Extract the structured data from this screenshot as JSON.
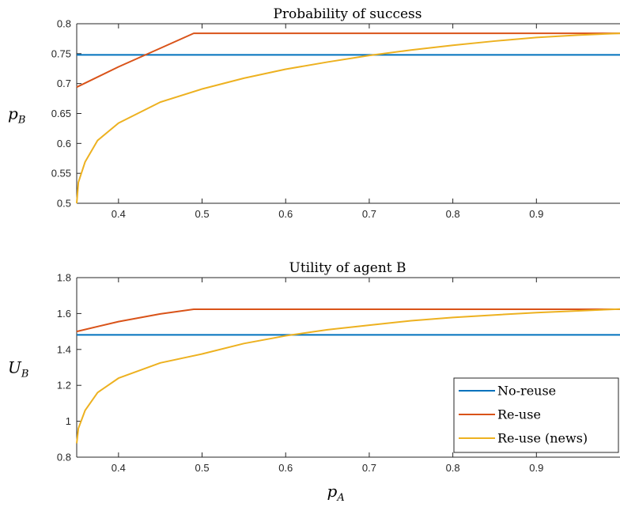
{
  "chart_data": [
    {
      "type": "line",
      "title": "Probability of success",
      "ylabel_main": "p",
      "ylabel_sub": "B",
      "xlim": [
        0.35,
        1.0
      ],
      "ylim": [
        0.5,
        0.8
      ],
      "xticks": [
        0.4,
        0.5,
        0.6,
        0.7,
        0.8,
        0.9
      ],
      "xtick_labels": [
        "0.4",
        "0.5",
        "0.6",
        "0.7",
        "0.8",
        "0.9"
      ],
      "yticks": [
        0.5,
        0.55,
        0.6,
        0.65,
        0.7,
        0.75,
        0.8
      ],
      "ytick_labels": [
        "0.5",
        "0.55",
        "0.6",
        "0.65",
        "0.7",
        "0.75",
        "0.8"
      ],
      "series": [
        {
          "color": "#0072BD",
          "x": [
            0.35,
            1.0
          ],
          "y": [
            0.748,
            0.748
          ]
        },
        {
          "color": "#D95319",
          "x": [
            0.35,
            0.4,
            0.45,
            0.49,
            0.6,
            0.8,
            1.0
          ],
          "y": [
            0.694,
            0.728,
            0.759,
            0.784,
            0.784,
            0.784,
            0.784
          ]
        },
        {
          "color": "#EDB120",
          "x": [
            0.35,
            0.352,
            0.36,
            0.375,
            0.4,
            0.45,
            0.5,
            0.55,
            0.6,
            0.65,
            0.7,
            0.75,
            0.8,
            0.85,
            0.9,
            0.95,
            1.0
          ],
          "y": [
            0.5,
            0.535,
            0.569,
            0.605,
            0.634,
            0.669,
            0.691,
            0.709,
            0.724,
            0.736,
            0.747,
            0.756,
            0.764,
            0.771,
            0.777,
            0.781,
            0.784
          ]
        }
      ]
    },
    {
      "type": "line",
      "title": "Utility of agent B",
      "ylabel_main": "U",
      "ylabel_sub": "B",
      "xlabel_main": "p",
      "xlabel_sub": "A",
      "xlim": [
        0.35,
        1.0
      ],
      "ylim": [
        0.8,
        1.8
      ],
      "xticks": [
        0.4,
        0.5,
        0.6,
        0.7,
        0.8,
        0.9
      ],
      "xtick_labels": [
        "0.4",
        "0.5",
        "0.6",
        "0.7",
        "0.8",
        "0.9"
      ],
      "yticks": [
        0.8,
        1.0,
        1.2,
        1.4,
        1.6,
        1.8
      ],
      "ytick_labels": [
        "0.8",
        "1",
        "1.2",
        "1.4",
        "1.6",
        "1.8"
      ],
      "legend": {
        "placement": "bottom-right",
        "entries": [
          "No-reuse",
          "Re-use",
          "Re-use (news)"
        ]
      },
      "series": [
        {
          "color": "#0072BD",
          "x": [
            0.35,
            1.0
          ],
          "y": [
            1.481,
            1.481
          ]
        },
        {
          "color": "#D95319",
          "x": [
            0.35,
            0.4,
            0.45,
            0.49,
            0.6,
            0.8,
            1.0
          ],
          "y": [
            1.5,
            1.555,
            1.598,
            1.624,
            1.624,
            1.624,
            1.624
          ]
        },
        {
          "color": "#EDB120",
          "x": [
            0.35,
            0.352,
            0.36,
            0.375,
            0.4,
            0.45,
            0.5,
            0.55,
            0.6,
            0.65,
            0.7,
            0.75,
            0.8,
            0.85,
            0.9,
            0.95,
            1.0
          ],
          "y": [
            0.877,
            0.96,
            1.06,
            1.16,
            1.24,
            1.325,
            1.375,
            1.433,
            1.476,
            1.51,
            1.535,
            1.56,
            1.578,
            1.592,
            1.605,
            1.615,
            1.625
          ]
        }
      ]
    }
  ]
}
